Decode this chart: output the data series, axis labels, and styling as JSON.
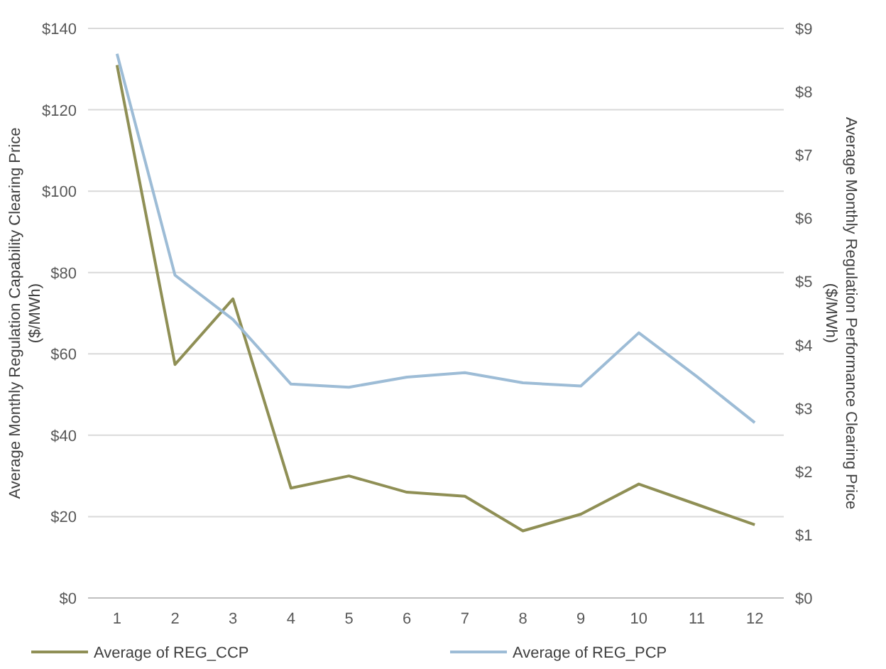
{
  "chart_data": {
    "type": "line",
    "x": [
      1,
      2,
      3,
      4,
      5,
      6,
      7,
      8,
      9,
      10,
      11,
      12
    ],
    "xlim": [
      0.5,
      12.5
    ],
    "xticks": [
      1,
      2,
      3,
      4,
      5,
      6,
      7,
      8,
      9,
      10,
      11,
      12
    ],
    "ylabel": "Average Monthly Regulation Capability Clearing Price\n($/MWh)",
    "y2label": "Average Monthly Regulation Performance Clearing Price\n($/MWh)",
    "series": [
      {
        "name": "Average of REG_CCP",
        "color": "#8f8f55",
        "values": [
          131,
          57.4,
          73.5,
          27,
          30,
          26,
          25,
          16.5,
          20.6,
          28,
          23,
          18
        ]
      },
      {
        "name": "Average of REG_PCP",
        "color": "#9dbcd6",
        "axis": "y2",
        "values": [
          8.6,
          5.1,
          4.4,
          3.38,
          3.33,
          3.49,
          3.56,
          3.4,
          3.35,
          4.19,
          3.5,
          2.77
        ]
      }
    ],
    "ylim": [
      0,
      140
    ],
    "yticks": [
      {
        "value": 0,
        "label": "$0"
      },
      {
        "value": 20,
        "label": "$20"
      },
      {
        "value": 40,
        "label": "$40"
      },
      {
        "value": 60,
        "label": "$60"
      },
      {
        "value": 80,
        "label": "$80"
      },
      {
        "value": 100,
        "label": "$100"
      },
      {
        "value": 120,
        "label": "$120"
      },
      {
        "value": 140,
        "label": "$140"
      }
    ],
    "y2lim": [
      0,
      9
    ],
    "y2ticks": [
      {
        "value": 0,
        "label": "$0"
      },
      {
        "value": 1,
        "label": "$1"
      },
      {
        "value": 2,
        "label": "$2"
      },
      {
        "value": 3,
        "label": "$3"
      },
      {
        "value": 4,
        "label": "$4"
      },
      {
        "value": 5,
        "label": "$5"
      },
      {
        "value": 6,
        "label": "$6"
      },
      {
        "value": 7,
        "label": "$7"
      },
      {
        "value": 8,
        "label": "$8"
      },
      {
        "value": 9,
        "label": "$9"
      }
    ],
    "grid": "y",
    "legend": "bottom",
    "line_style": "solid",
    "marker": "none"
  }
}
